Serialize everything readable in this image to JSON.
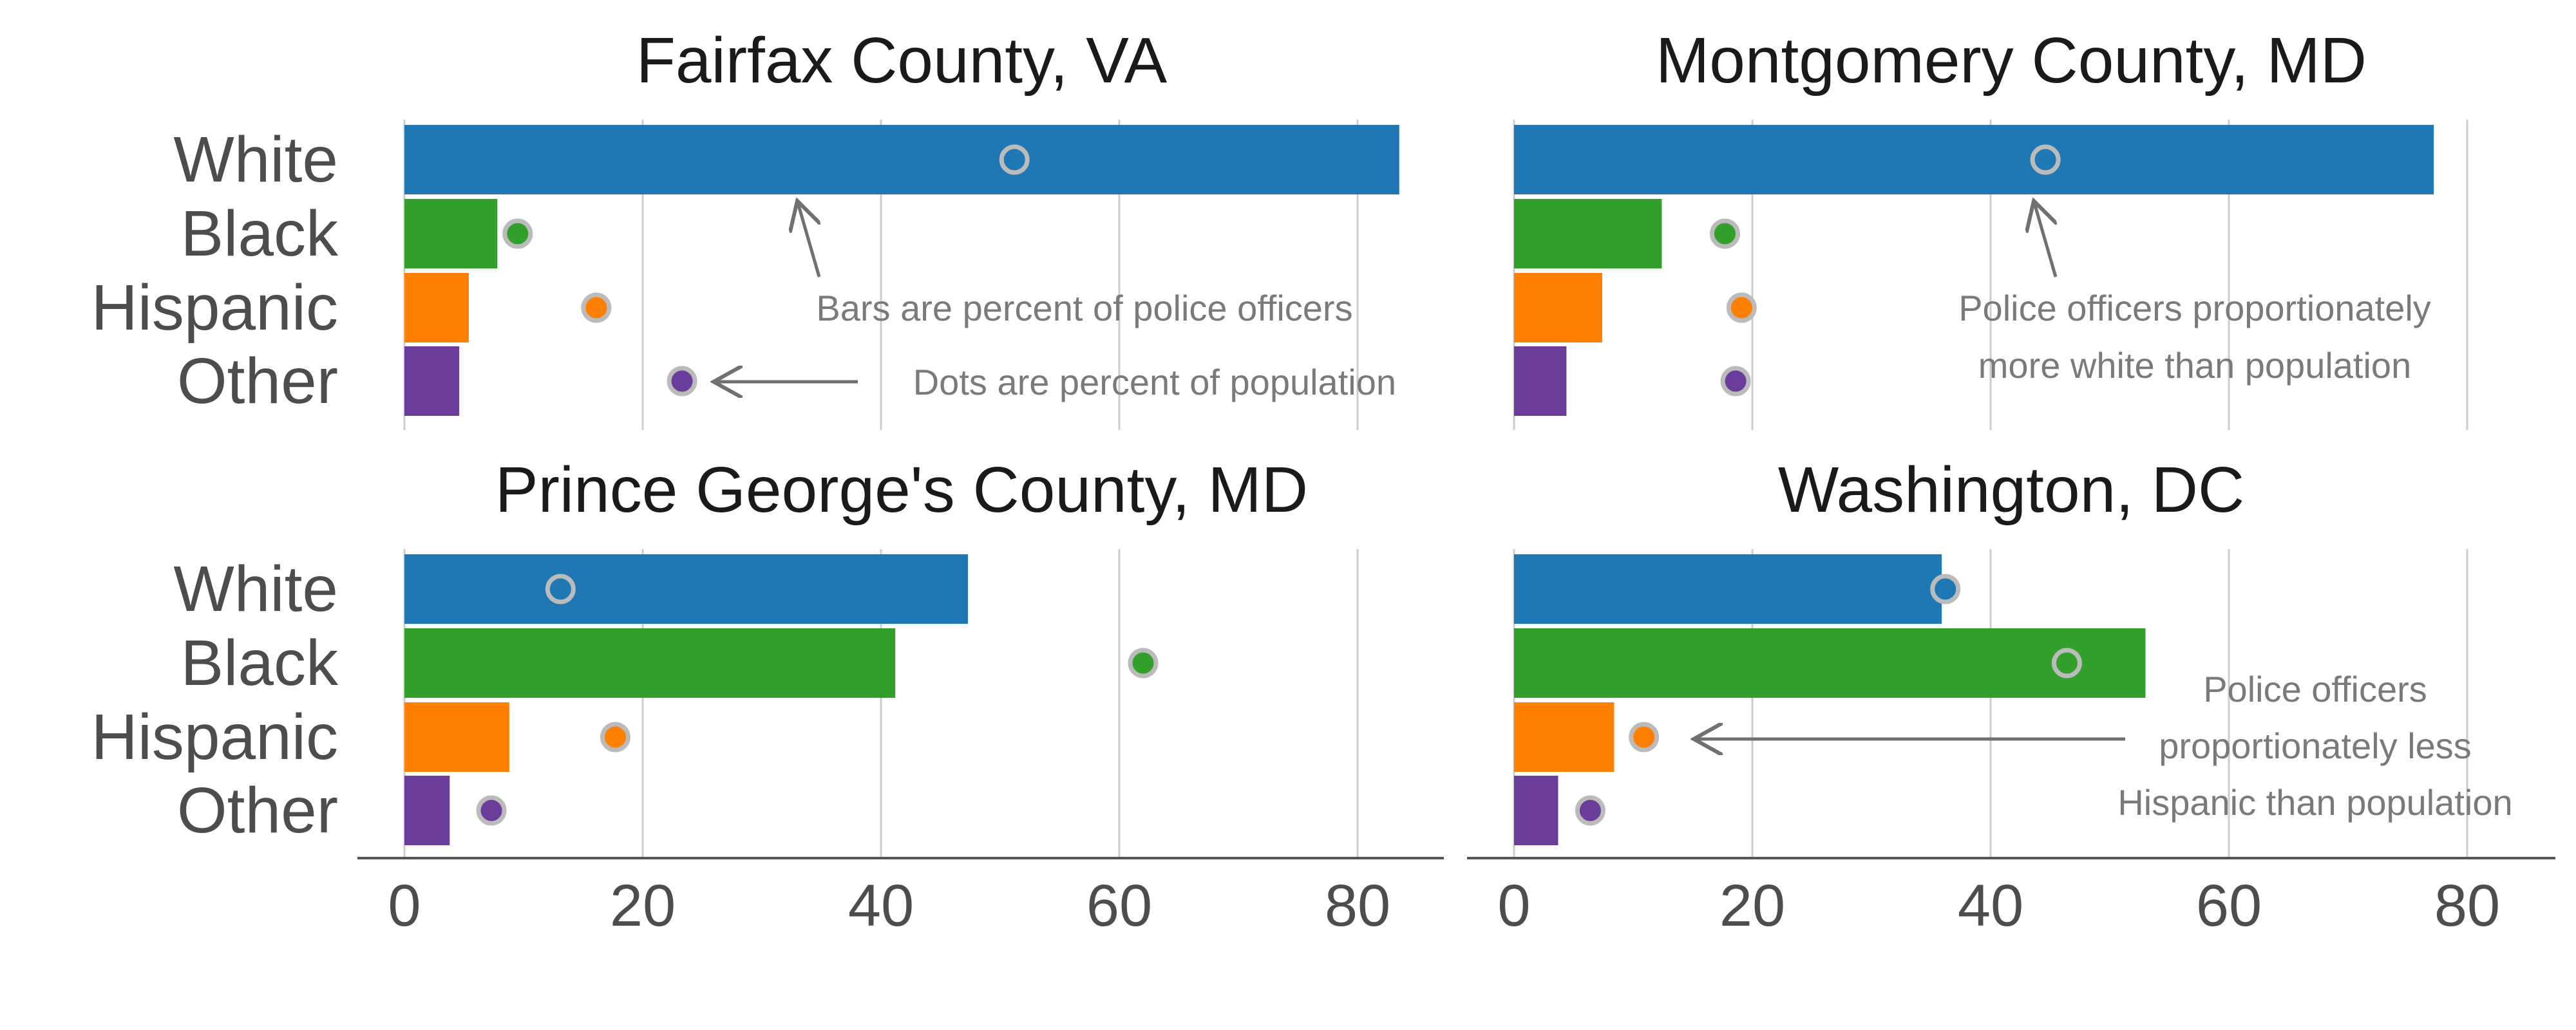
{
  "chart_data": {
    "type": "bar",
    "orientation": "horizontal",
    "categories": [
      "White",
      "Black",
      "Hispanic",
      "Other"
    ],
    "colors": [
      "#1f77b4",
      "#33a02c",
      "#ff7f00",
      "#6a3d9a"
    ],
    "dot_empty_fill": "#ffffff",
    "dot_stroke": "#bbbbbb",
    "xlim": [
      0,
      87
    ],
    "xticks": [
      0,
      20,
      40,
      60,
      80
    ],
    "grid": "vertical",
    "series_meaning": {
      "bars": "Percent of police officers",
      "dots": "Percent of population"
    },
    "panels": [
      {
        "title": "Fairfax County, VA",
        "bars": [
          83.5,
          7.8,
          5.4,
          4.6
        ],
        "dots": [
          51.2,
          9.5,
          16.1,
          23.3
        ],
        "annotations": [
          {
            "text": "Bars are percent of police officers"
          },
          {
            "text": "Dots are percent of population"
          }
        ]
      },
      {
        "title": "Montgomery County, MD",
        "bars": [
          77.2,
          12.4,
          7.4,
          4.4
        ],
        "dots": [
          44.6,
          17.7,
          19.1,
          18.6
        ],
        "annotations": [
          {
            "text": "Police officers proportionately"
          },
          {
            "text": "more white than population"
          }
        ]
      },
      {
        "title": "Prince George's County, MD",
        "bars": [
          47.3,
          41.2,
          8.8,
          3.8
        ],
        "dots": [
          13.1,
          62.0,
          17.7,
          7.3
        ],
        "annotations": []
      },
      {
        "title": "Washington, DC",
        "bars": [
          35.9,
          53.0,
          8.4,
          3.7
        ],
        "dots": [
          36.2,
          46.4,
          10.9,
          6.4
        ],
        "annotations": [
          {
            "text": "Police officers"
          },
          {
            "text": "proportionately less"
          },
          {
            "text": "Hispanic than population"
          }
        ]
      }
    ]
  }
}
